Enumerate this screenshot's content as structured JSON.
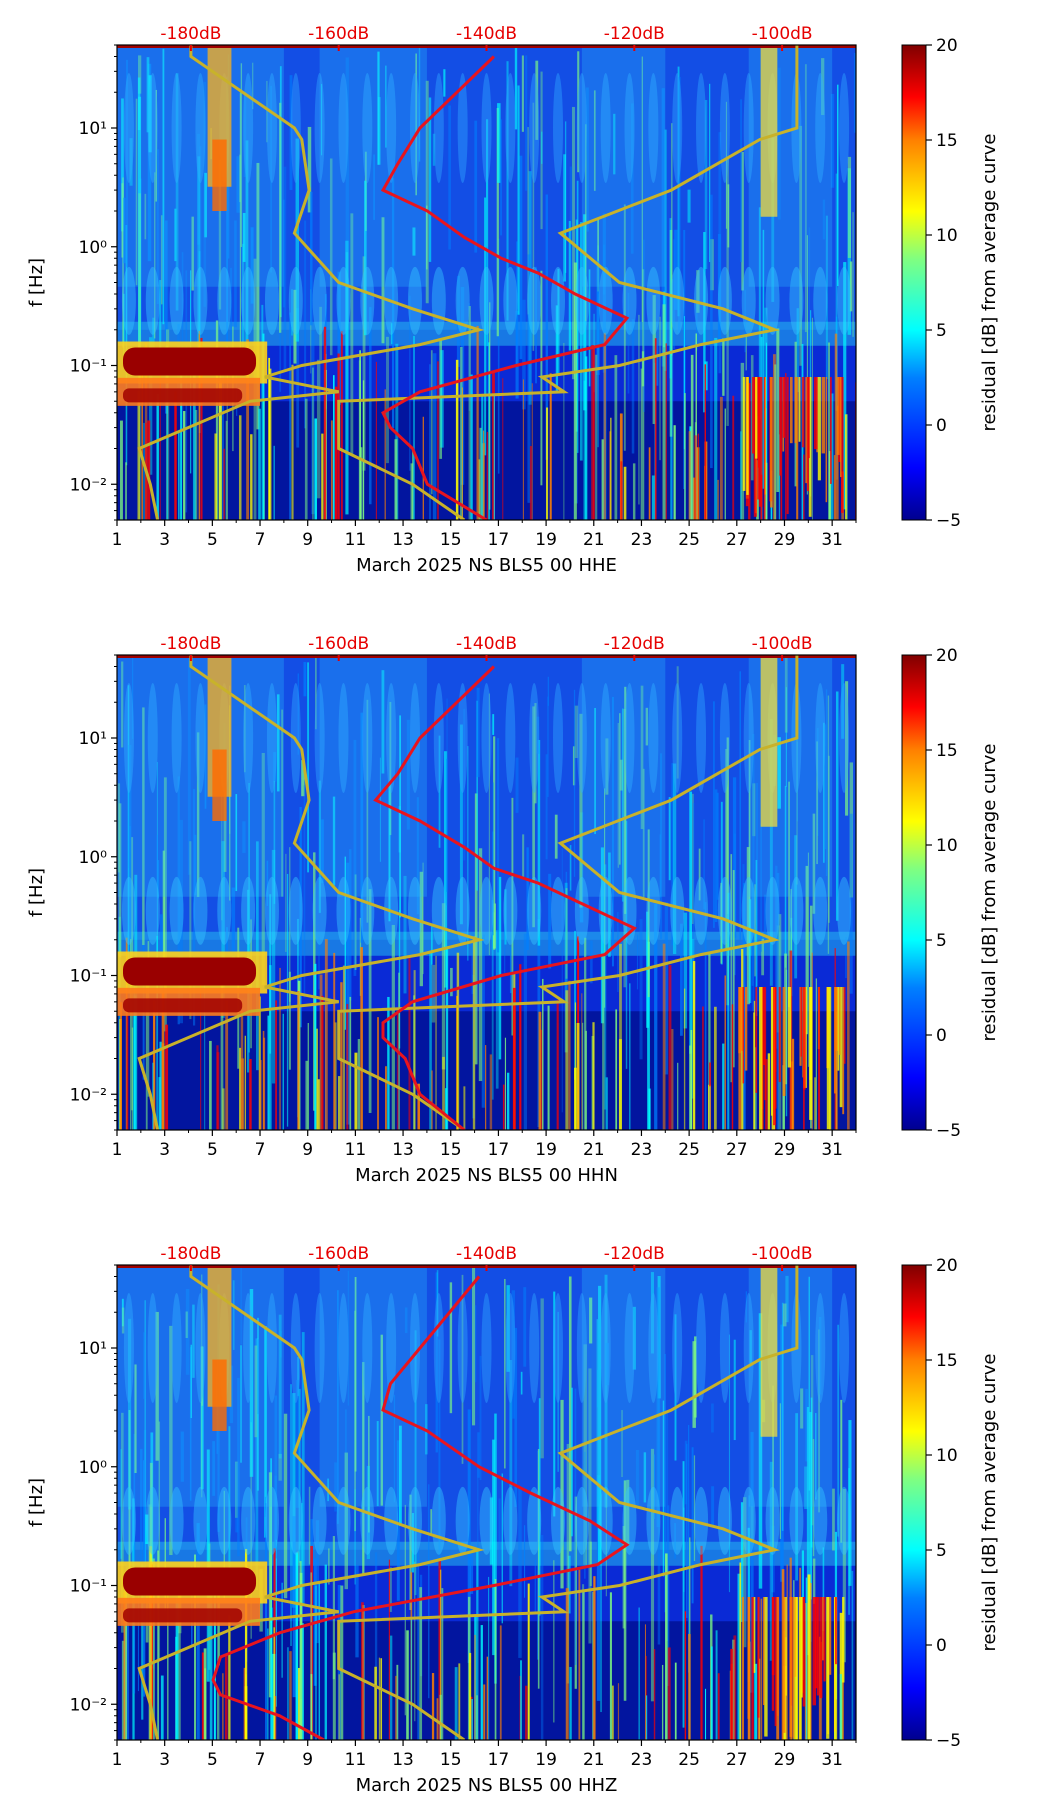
{
  "chart_data": [
    {
      "type": "heatmap",
      "xlabel": "March 2025 NS BLS5 00 HHE",
      "ylabel": "f [Hz]",
      "x_ticks": [
        "1",
        "3",
        "5",
        "7",
        "9",
        "11",
        "13",
        "15",
        "17",
        "19",
        "21",
        "23",
        "25",
        "27",
        "29",
        "31"
      ],
      "y_ticks": [
        "10⁻²",
        "10⁻¹",
        "10⁰",
        "10¹"
      ],
      "top_ticks": [
        "-180dB",
        "-160dB",
        "-140dB",
        "-120dB",
        "-100dB"
      ],
      "colorbar_label": "residual [dB] from average curve",
      "colorbar_ticks": [
        "−5",
        "0",
        "5",
        "10",
        "15",
        "20"
      ],
      "colorbar_range": [
        -5,
        20
      ],
      "xlim": [
        1,
        32
      ],
      "ylim": [
        0.005,
        50
      ],
      "y_scale": "log",
      "top_axis_range_db": [
        -190,
        -90
      ],
      "model_curves_db": {
        "freq": [
          0.005,
          0.01,
          0.02,
          0.05,
          0.06,
          0.08,
          0.1,
          0.15,
          0.2,
          0.3,
          0.5,
          1.3,
          3,
          8,
          10,
          40,
          50
        ],
        "low": [
          -184.5,
          -185.5,
          -187,
          -172,
          -160,
          -170,
          -165,
          -149,
          -141,
          -150,
          -160,
          -166,
          -164,
          -165,
          -166,
          -180,
          -180
        ],
        "high": [
          -143,
          -150,
          -160,
          -160,
          -129.5,
          -132.5,
          -122,
          -111,
          -101,
          -108,
          -122,
          -130,
          -115,
          -103,
          -98,
          -98,
          -98
        ]
      },
      "median_curve_db": {
        "freq": [
          0.005,
          0.01,
          0.02,
          0.03,
          0.04,
          0.06,
          0.1,
          0.15,
          0.25,
          0.4,
          0.6,
          0.8,
          1.2,
          2,
          3,
          5,
          10,
          20,
          40
        ],
        "db": [
          -140,
          -148,
          -150,
          -153,
          -154,
          -149,
          -136,
          -124,
          -121,
          -128,
          -133,
          -138,
          -143,
          -148,
          -154,
          -152,
          -149,
          -144,
          -139
        ]
      }
    },
    {
      "type": "heatmap",
      "xlabel": "March 2025 NS BLS5 00 HHN",
      "ylabel": "f [Hz]",
      "x_ticks": [
        "1",
        "3",
        "5",
        "7",
        "9",
        "11",
        "13",
        "15",
        "17",
        "19",
        "21",
        "23",
        "25",
        "27",
        "29",
        "31"
      ],
      "y_ticks": [
        "10⁻²",
        "10⁻¹",
        "10⁰",
        "10¹"
      ],
      "top_ticks": [
        "-180dB",
        "-160dB",
        "-140dB",
        "-120dB",
        "-100dB"
      ],
      "colorbar_label": "residual [dB] from average curve",
      "colorbar_ticks": [
        "−5",
        "0",
        "5",
        "10",
        "15",
        "20"
      ],
      "colorbar_range": [
        -5,
        20
      ],
      "xlim": [
        1,
        32
      ],
      "ylim": [
        0.005,
        50
      ],
      "y_scale": "log",
      "top_axis_range_db": [
        -190,
        -90
      ],
      "model_curves_db": {
        "freq": [
          0.005,
          0.01,
          0.02,
          0.05,
          0.06,
          0.08,
          0.1,
          0.15,
          0.2,
          0.3,
          0.5,
          1.3,
          3,
          8,
          10,
          40,
          50
        ],
        "low": [
          -184.5,
          -185.5,
          -187,
          -172,
          -160,
          -170,
          -165,
          -149,
          -141,
          -150,
          -160,
          -166,
          -164,
          -165,
          -166,
          -180,
          -180
        ],
        "high": [
          -143,
          -150,
          -160,
          -160,
          -129.5,
          -132.5,
          -122,
          -111,
          -101,
          -108,
          -122,
          -130,
          -115,
          -103,
          -98,
          -98,
          -98
        ]
      },
      "median_curve_db": {
        "freq": [
          0.005,
          0.01,
          0.02,
          0.03,
          0.04,
          0.06,
          0.1,
          0.15,
          0.25,
          0.4,
          0.6,
          0.8,
          1.2,
          2,
          3,
          5,
          10,
          20,
          40
        ],
        "db": [
          -143,
          -149,
          -151,
          -154,
          -154,
          -150,
          -138,
          -124,
          -120,
          -127,
          -133,
          -139,
          -143,
          -149,
          -155,
          -152,
          -149,
          -144,
          -139
        ]
      }
    },
    {
      "type": "heatmap",
      "xlabel": "March 2025 NS BLS5 00 HHZ",
      "ylabel": "f [Hz]",
      "x_ticks": [
        "1",
        "3",
        "5",
        "7",
        "9",
        "11",
        "13",
        "15",
        "17",
        "19",
        "21",
        "23",
        "25",
        "27",
        "29",
        "31"
      ],
      "y_ticks": [
        "10⁻²",
        "10⁻¹",
        "10⁰",
        "10¹"
      ],
      "top_ticks": [
        "-180dB",
        "-160dB",
        "-140dB",
        "-120dB",
        "-100dB"
      ],
      "colorbar_label": "residual [dB] from average curve",
      "colorbar_ticks": [
        "−5",
        "0",
        "5",
        "10",
        "15",
        "20"
      ],
      "colorbar_range": [
        -5,
        20
      ],
      "xlim": [
        1,
        32
      ],
      "ylim": [
        0.005,
        50
      ],
      "y_scale": "log",
      "top_axis_range_db": [
        -190,
        -90
      ],
      "model_curves_db": {
        "freq": [
          0.005,
          0.01,
          0.02,
          0.05,
          0.06,
          0.08,
          0.1,
          0.15,
          0.2,
          0.3,
          0.5,
          1.3,
          3,
          8,
          10,
          40,
          50
        ],
        "low": [
          -184.5,
          -185.5,
          -187,
          -172,
          -160,
          -170,
          -165,
          -149,
          -141,
          -150,
          -160,
          -166,
          -164,
          -165,
          -166,
          -180,
          -180
        ],
        "high": [
          -143,
          -150,
          -160,
          -160,
          -129.5,
          -132.5,
          -122,
          -111,
          -101,
          -108,
          -122,
          -130,
          -115,
          -103,
          -98,
          -98,
          -98
        ]
      },
      "median_curve_db": {
        "freq": [
          0.005,
          0.008,
          0.012,
          0.016,
          0.025,
          0.04,
          0.06,
          0.1,
          0.15,
          0.22,
          0.35,
          0.6,
          1,
          2,
          3,
          5,
          10,
          20,
          40
        ],
        "db": [
          -162,
          -168,
          -176,
          -177,
          -176,
          -168,
          -158,
          -139,
          -125,
          -121,
          -126,
          -134,
          -141,
          -148,
          -154,
          -153,
          -149,
          -145,
          -141
        ]
      }
    }
  ],
  "colors": {
    "median_curve": "#e8141e",
    "model_curves": "#c8b22a",
    "top_tick_text": "#e60000"
  }
}
